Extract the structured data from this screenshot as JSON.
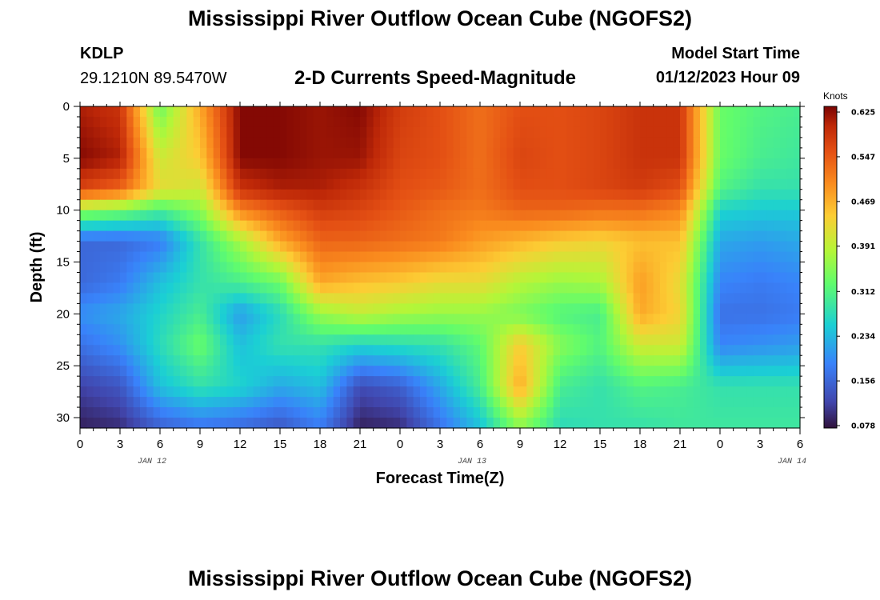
{
  "page": {
    "title_top": "Mississippi River Outflow Ocean Cube (NGOFS2)",
    "title_bottom": "Mississippi River Outflow Ocean Cube (NGOFS2)",
    "station_id": "KDLP",
    "station_coords": "29.1210N  89.5470W",
    "plot_subtitle": "2-D Currents Speed-Magnitude",
    "model_start_label": "Model Start Time",
    "model_start_value": "01/12/2023 Hour 09"
  },
  "chart_data": {
    "type": "heatmap",
    "title": "2-D Currents Speed-Magnitude",
    "xlabel": "Forecast Time(Z)",
    "ylabel": "Depth (ft)",
    "x_ticks": [
      "0",
      "3",
      "6",
      "9",
      "12",
      "15",
      "18",
      "21",
      "0",
      "3",
      "6",
      "9",
      "12",
      "15",
      "18",
      "21",
      "0",
      "3",
      "6"
    ],
    "x_dates": [
      "JAN 12",
      "JAN 13",
      "JAN 14"
    ],
    "y_ticks": [
      "0",
      "5",
      "10",
      "15",
      "20",
      "25",
      "30"
    ],
    "ylim": [
      0,
      31
    ],
    "y_inverted": true,
    "colorbar": {
      "unit": "Knots",
      "ticks": [
        "0.625",
        "0.547",
        "0.469",
        "0.391",
        "0.312",
        "0.234",
        "0.156",
        "0.078"
      ],
      "range": [
        0.078,
        0.625
      ]
    },
    "depth_nodes": [
      0,
      5,
      8,
      10,
      13,
      17,
      20,
      23,
      27,
      31
    ],
    "field_columns": [
      {
        "hour": 0,
        "speeds": [
          0.6,
          0.62,
          0.56,
          0.36,
          0.16,
          0.16,
          0.2,
          0.17,
          0.12,
          0.09
        ]
      },
      {
        "hour": 3,
        "speeds": [
          0.58,
          0.6,
          0.53,
          0.34,
          0.16,
          0.18,
          0.22,
          0.2,
          0.14,
          0.1
        ]
      },
      {
        "hour": 6,
        "speeds": [
          0.33,
          0.4,
          0.42,
          0.3,
          0.18,
          0.24,
          0.26,
          0.27,
          0.24,
          0.15
        ]
      },
      {
        "hour": 9,
        "speeds": [
          0.47,
          0.44,
          0.4,
          0.35,
          0.28,
          0.28,
          0.3,
          0.33,
          0.28,
          0.17
        ]
      },
      {
        "hour": 12,
        "speeds": [
          0.62,
          0.62,
          0.58,
          0.5,
          0.37,
          0.3,
          0.21,
          0.24,
          0.26,
          0.16
        ]
      },
      {
        "hour": 15,
        "speeds": [
          0.62,
          0.62,
          0.6,
          0.54,
          0.47,
          0.33,
          0.27,
          0.28,
          0.22,
          0.14
        ]
      },
      {
        "hour": 18,
        "speeds": [
          0.61,
          0.61,
          0.6,
          0.57,
          0.53,
          0.47,
          0.36,
          0.28,
          0.24,
          0.18
        ]
      },
      {
        "hour": 21,
        "speeds": [
          0.62,
          0.61,
          0.58,
          0.56,
          0.53,
          0.45,
          0.39,
          0.26,
          0.13,
          0.09
        ]
      },
      {
        "hour": 24,
        "speeds": [
          0.57,
          0.56,
          0.55,
          0.54,
          0.52,
          0.44,
          0.37,
          0.27,
          0.15,
          0.1
        ]
      },
      {
        "hour": 27,
        "speeds": [
          0.55,
          0.55,
          0.54,
          0.52,
          0.51,
          0.42,
          0.36,
          0.28,
          0.22,
          0.17
        ]
      },
      {
        "hour": 30,
        "speeds": [
          0.52,
          0.52,
          0.52,
          0.51,
          0.48,
          0.42,
          0.36,
          0.32,
          0.3,
          0.24
        ]
      },
      {
        "hour": 33,
        "speeds": [
          0.55,
          0.56,
          0.55,
          0.53,
          0.46,
          0.38,
          0.34,
          0.44,
          0.47,
          0.35
        ]
      },
      {
        "hour": 36,
        "speeds": [
          0.55,
          0.55,
          0.55,
          0.53,
          0.44,
          0.36,
          0.31,
          0.35,
          0.3,
          0.27
        ]
      },
      {
        "hour": 39,
        "speeds": [
          0.56,
          0.56,
          0.56,
          0.52,
          0.43,
          0.37,
          0.3,
          0.31,
          0.28,
          0.28
        ]
      },
      {
        "hour": 42,
        "speeds": [
          0.58,
          0.58,
          0.57,
          0.52,
          0.45,
          0.48,
          0.47,
          0.4,
          0.31,
          0.28
        ]
      },
      {
        "hour": 45,
        "speeds": [
          0.58,
          0.58,
          0.55,
          0.5,
          0.45,
          0.42,
          0.43,
          0.4,
          0.3,
          0.29
        ]
      },
      {
        "hour": 48,
        "speeds": [
          0.33,
          0.33,
          0.31,
          0.26,
          0.22,
          0.19,
          0.17,
          0.19,
          0.28,
          0.29
        ]
      },
      {
        "hour": 51,
        "speeds": [
          0.31,
          0.3,
          0.28,
          0.25,
          0.21,
          0.18,
          0.17,
          0.2,
          0.28,
          0.29
        ]
      },
      {
        "hour": 54,
        "speeds": [
          0.3,
          0.29,
          0.28,
          0.25,
          0.22,
          0.19,
          0.18,
          0.21,
          0.28,
          0.29
        ]
      }
    ]
  }
}
